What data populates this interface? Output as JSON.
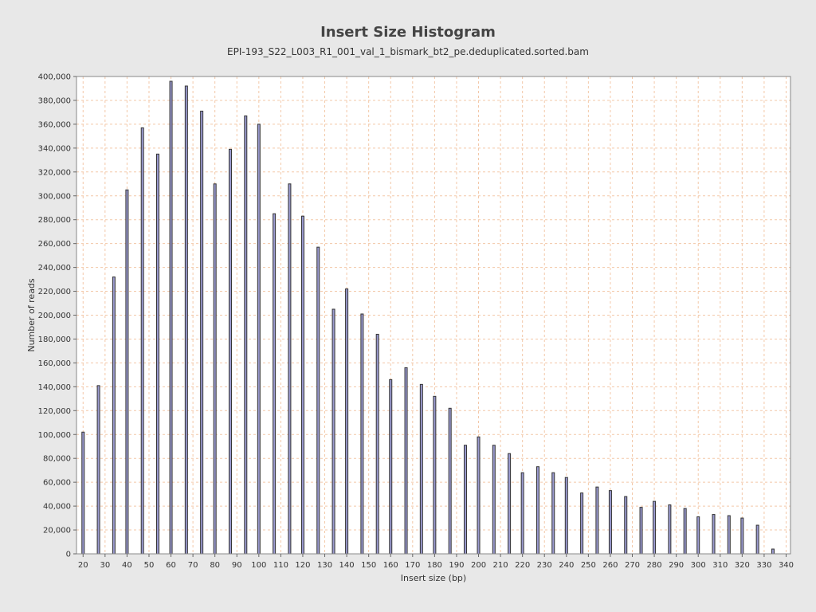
{
  "chart_data": {
    "type": "bar",
    "title": "Insert Size Histogram",
    "subtitle": "EPI-193_S22_L003_R1_001_val_1_bismark_bt2_pe.deduplicated.sorted.bam",
    "xlabel": "Insert size (bp)",
    "ylabel": "Number of reads",
    "xlim": [
      17,
      342
    ],
    "ylim": [
      0,
      400000
    ],
    "x_ticks": [
      20,
      30,
      40,
      50,
      60,
      70,
      80,
      90,
      100,
      110,
      120,
      130,
      140,
      150,
      160,
      170,
      180,
      190,
      200,
      210,
      220,
      230,
      240,
      250,
      260,
      270,
      280,
      290,
      300,
      310,
      320,
      330,
      340
    ],
    "x_tick_labels": [
      "20",
      "30",
      "40",
      "50",
      "60",
      "70",
      "80",
      "90",
      "100",
      "110",
      "120",
      "130",
      "140",
      "150",
      "160",
      "170",
      "180",
      "190",
      "200",
      "210",
      "220",
      "230",
      "240",
      "250",
      "260",
      "270",
      "280",
      "290",
      "300",
      "310",
      "320",
      "330",
      "340"
    ],
    "y_ticks": [
      0,
      20000,
      40000,
      60000,
      80000,
      100000,
      120000,
      140000,
      160000,
      180000,
      200000,
      220000,
      240000,
      260000,
      280000,
      300000,
      320000,
      340000,
      360000,
      380000,
      400000
    ],
    "y_tick_labels": [
      "0",
      "20,000",
      "40,000",
      "60,000",
      "80,000",
      "100,000",
      "120,000",
      "140,000",
      "160,000",
      "180,000",
      "200,000",
      "220,000",
      "240,000",
      "260,000",
      "280,000",
      "300,000",
      "320,000",
      "340,000",
      "360,000",
      "380,000",
      "400,000"
    ],
    "grid": true,
    "series": [
      {
        "x": [
          20,
          27,
          34,
          40,
          47,
          54,
          60,
          67,
          74,
          80,
          87,
          94,
          100,
          107,
          114,
          120,
          127,
          134,
          140,
          147,
          154,
          160,
          167,
          174,
          180,
          187,
          194,
          200,
          207,
          214,
          220,
          227,
          234,
          240,
          247,
          254,
          260,
          267,
          274,
          280,
          287,
          294,
          300,
          307,
          314,
          320,
          327,
          334
        ],
        "values": [
          102000,
          141000,
          232000,
          305000,
          357000,
          335000,
          396000,
          392000,
          371000,
          310000,
          339000,
          367000,
          360000,
          285000,
          310000,
          283000,
          257000,
          205000,
          222000,
          201000,
          184000,
          146000,
          156000,
          142000,
          132000,
          122000,
          91000,
          98000,
          91000,
          84000,
          68000,
          73000,
          68000,
          64000,
          51000,
          56000,
          53000,
          48000,
          39000,
          44000,
          41000,
          38000,
          31000,
          33000,
          32000,
          30000,
          24000,
          4000
        ]
      }
    ],
    "colors": {
      "bar_fill": "#9a9acf",
      "bar_edge": "#333333",
      "grid": "#f3c8a8",
      "plot_bg": "#ffffff",
      "page_bg": "#e8e8e8"
    }
  }
}
